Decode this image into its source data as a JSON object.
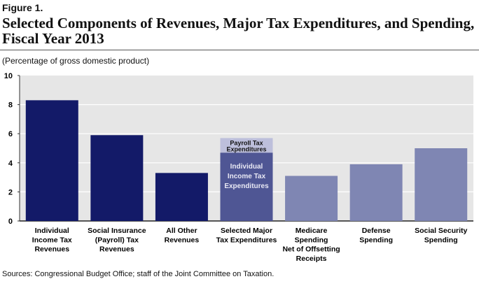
{
  "figure_label": "Figure 1.",
  "chart_data": {
    "type": "bar",
    "title": "Selected Components of Revenues, Major Tax Expenditures, and Spending, Fiscal Year 2013",
    "ylabel": "(Percentage of gross domestic product)",
    "ylim": [
      0,
      10
    ],
    "yticks": [
      0,
      2,
      4,
      6,
      8,
      10
    ],
    "grid": true,
    "categories": [
      [
        "Individual",
        "Income Tax",
        "Revenues"
      ],
      [
        "Social Insurance",
        "(Payroll) Tax",
        "Revenues"
      ],
      [
        "All Other",
        "Revenues"
      ],
      [
        "Selected Major",
        "Tax Expenditures"
      ],
      [
        "Medicare",
        "Spending",
        "Net of Offsetting",
        "Receipts"
      ],
      [
        "Defense",
        "Spending"
      ],
      [
        "Social Security",
        "Spending"
      ]
    ],
    "bars": [
      {
        "segments": [
          {
            "value": 8.3,
            "color": "#131a68"
          }
        ]
      },
      {
        "segments": [
          {
            "value": 5.9,
            "color": "#131a68"
          }
        ]
      },
      {
        "segments": [
          {
            "value": 3.3,
            "color": "#131a68"
          }
        ]
      },
      {
        "segments": [
          {
            "name": "Individual Income Tax Expenditures",
            "label": [
              "Individual",
              "Income Tax",
              "Expenditures"
            ],
            "value": 4.7,
            "color": "#4f5694"
          },
          {
            "name": "Payroll Tax Expenditures",
            "label": [
              "Payroll Tax",
              "Expenditures"
            ],
            "value": 1.0,
            "color": "#bdbfdb"
          }
        ]
      },
      {
        "segments": [
          {
            "value": 3.1,
            "color": "#7f86b3"
          }
        ]
      },
      {
        "segments": [
          {
            "value": 3.9,
            "color": "#7f86b3"
          }
        ]
      },
      {
        "segments": [
          {
            "value": 5.0,
            "color": "#7f86b3"
          }
        ]
      }
    ]
  },
  "sources": "Sources:  Congressional Budget Office; staff of the Joint Committee on Taxation."
}
